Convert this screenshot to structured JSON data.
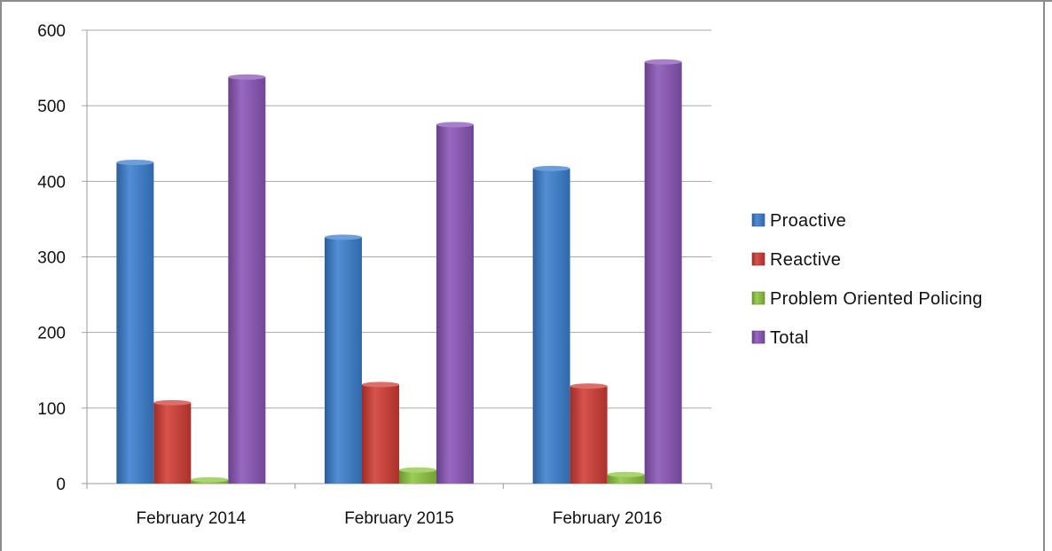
{
  "chart_data": {
    "type": "bar",
    "categories": [
      "February 2014",
      "February 2015",
      "February 2016"
    ],
    "series": [
      {
        "name": "Proactive",
        "values": [
          425,
          326,
          417
        ],
        "color": "#3a7fd0"
      },
      {
        "name": "Reactive",
        "values": [
          107,
          131,
          129
        ],
        "color": "#d23c34"
      },
      {
        "name": "Problem Oriented Policing",
        "values": [
          5,
          18,
          12
        ],
        "color": "#8ec63f"
      },
      {
        "name": "Total",
        "values": [
          538,
          475,
          558
        ],
        "color": "#8a55b8"
      }
    ],
    "ylim": [
      0,
      600
    ],
    "yticks": [
      0,
      100,
      200,
      300,
      400,
      500,
      600
    ],
    "title": "",
    "xlabel": "",
    "ylabel": "",
    "grid": true,
    "legend_position": "right"
  }
}
